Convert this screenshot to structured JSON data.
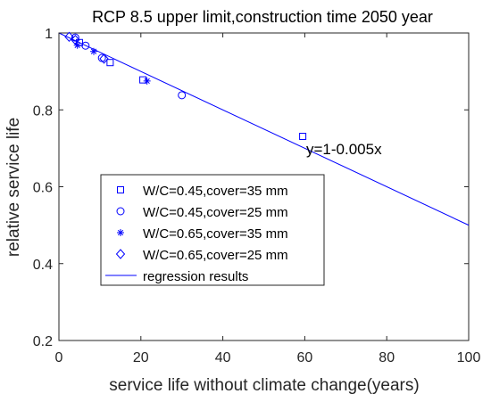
{
  "chart_data": {
    "type": "scatter",
    "title": "RCP 8.5 upper limit,construction time 2050 year",
    "xlabel": "service life without climate change(years)",
    "ylabel": "relative service life",
    "xlim": [
      0,
      100
    ],
    "ylim": [
      0.2,
      1
    ],
    "xticks": [
      "0",
      "20",
      "40",
      "60",
      "80",
      "100"
    ],
    "yticks": [
      "0.2",
      "0.4",
      "0.6",
      "0.8",
      "1"
    ],
    "grid": false,
    "legend_position": "center-left",
    "color": "#0000ff",
    "series": [
      {
        "name": "W/C=0.45,cover=35 mm",
        "marker": "square",
        "x": [
          5.0,
          12.5,
          20.5,
          59.5
        ],
        "y": [
          0.975,
          0.923,
          0.878,
          0.731
        ]
      },
      {
        "name": "W/C=0.45,cover=25 mm",
        "marker": "circle",
        "x": [
          4.0,
          6.5,
          10.5,
          30.0
        ],
        "y": [
          0.988,
          0.967,
          0.935,
          0.838
        ]
      },
      {
        "name": "W/C=0.65,cover=35 mm",
        "marker": "asterisk",
        "x": [
          4.5,
          8.5,
          21.5
        ],
        "y": [
          0.968,
          0.952,
          0.875
        ]
      },
      {
        "name": "W/C=0.65,cover=25 mm",
        "marker": "diamond",
        "x": [
          2.5,
          4.0,
          11.0
        ],
        "y": [
          0.99,
          0.982,
          0.933
        ]
      },
      {
        "name": "regression results",
        "type": "line",
        "x": [
          0,
          100
        ],
        "y": [
          1,
          0.5
        ]
      }
    ],
    "annotation": "y=1-0.005x"
  }
}
